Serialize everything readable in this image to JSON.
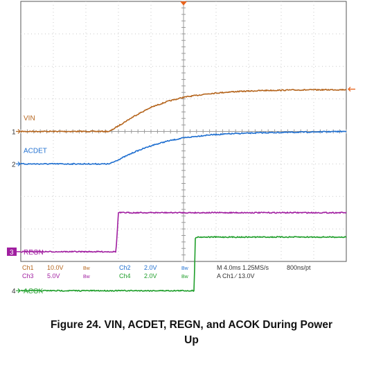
{
  "figure": {
    "caption_line1": "Figure 24. VIN, ACDET, REGN, and ACOK During Power",
    "caption_line2": "Up"
  },
  "chart_data": {
    "type": "line",
    "title": "Figure 24. VIN, ACDET, REGN, and ACOK During Power Up",
    "x": {
      "unit": "ms",
      "range": [
        -20,
        20
      ],
      "divisions": 10,
      "per_division": 4.0
    },
    "grid": true,
    "series": [
      {
        "name": "VIN",
        "channel": "Ch1",
        "marker": "1",
        "color": "#b5651d",
        "scale": "10.0V",
        "offset_div": 0.0,
        "points": [
          [
            -20,
            0
          ],
          [
            -9.1,
            0
          ],
          [
            -6,
            4.8
          ],
          [
            -4,
            7.4
          ],
          [
            -2,
            9.2
          ],
          [
            0,
            10.5
          ],
          [
            3,
            11.6
          ],
          [
            6,
            12.2
          ],
          [
            10,
            12.6
          ],
          [
            14,
            12.75
          ],
          [
            20,
            12.85
          ]
        ]
      },
      {
        "name": "ACDET",
        "channel": "Ch2",
        "marker": "2",
        "color": "#1f6fd0",
        "scale": "2.0V",
        "offset_div": -1.0,
        "points": [
          [
            -20,
            0
          ],
          [
            -9.1,
            0
          ],
          [
            -6,
            0.74
          ],
          [
            -4,
            1.12
          ],
          [
            -2,
            1.4
          ],
          [
            0,
            1.6
          ],
          [
            3,
            1.78
          ],
          [
            6,
            1.86
          ],
          [
            10,
            1.92
          ],
          [
            14,
            1.95
          ],
          [
            20,
            2.0
          ]
        ]
      },
      {
        "name": "REGN",
        "channel": "Ch3",
        "marker": "3",
        "color": "#a01ea0",
        "scale": "5.0V",
        "offset_div": -3.7,
        "points": [
          [
            -20,
            0
          ],
          [
            -8.3,
            0
          ],
          [
            -8.0,
            6.0
          ],
          [
            20,
            6.0
          ]
        ]
      },
      {
        "name": "ACOK",
        "channel": "Ch4",
        "marker": "4",
        "color": "#1e9e2a",
        "scale": "2.0V",
        "offset_div": -4.9,
        "points": [
          [
            -20,
            0
          ],
          [
            1.3,
            0
          ],
          [
            1.45,
            3.3
          ],
          [
            20,
            3.3
          ]
        ]
      }
    ],
    "readout": {
      "ch1_label": "Ch1",
      "ch1_scale": "10.0V",
      "ch2_label": "Ch2",
      "ch2_scale": "2.0V",
      "ch3_label": "Ch3",
      "ch3_scale": "5.0V",
      "ch4_label": "Ch4",
      "ch4_scale": "2.0V",
      "bw": "Bw",
      "timebase": "M 4.0ms 1.25MS/s",
      "resolution": "800ns/pt",
      "trigger": "A Ch1 ∕ 13.0V"
    },
    "colors": {
      "grid": "#c8c8c8",
      "frame": "#555555",
      "trigger_marker": "#e8641e"
    }
  }
}
